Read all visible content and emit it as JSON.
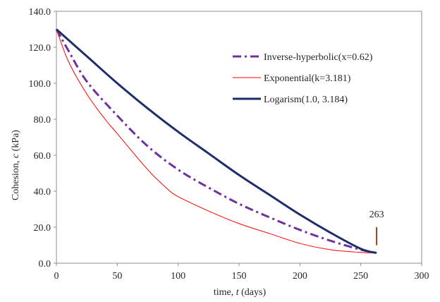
{
  "chart_data": {
    "type": "line",
    "xlabel": {
      "prefix": "time, ",
      "var": "t",
      "suffix": " (days)"
    },
    "ylabel": {
      "prefix": "Cohesion, ",
      "var": "c",
      "suffix": " (kPa)"
    },
    "xlim": [
      0,
      300
    ],
    "ylim": [
      0,
      140
    ],
    "xticks": [
      0,
      50,
      100,
      150,
      200,
      250,
      300
    ],
    "yticks": [
      0,
      20,
      40,
      60,
      80,
      100,
      120,
      140
    ],
    "xtick_labels": [
      "0",
      "50",
      "100",
      "150",
      "200",
      "250",
      "300"
    ],
    "ytick_labels": [
      "0.0",
      "20.0",
      "40.0",
      "60.0",
      "80.0",
      "100.0",
      "120.0",
      "140.0"
    ],
    "grid": false,
    "legend_position": "top-right",
    "series": [
      {
        "name": "Inverse-hyperbolic(x=0.62)",
        "color": "#7030a0",
        "style": "dash-dot",
        "x": [
          0,
          10,
          25,
          50,
          75,
          100,
          125,
          150,
          175,
          200,
          225,
          250,
          263
        ],
        "y": [
          130,
          118,
          101,
          82,
          65,
          52,
          42,
          33,
          25.5,
          18.5,
          12.5,
          7.5,
          5.7
        ]
      },
      {
        "name": "Exponential(k=3.181)",
        "color": "#ff0000",
        "style": "solid-thin",
        "x": [
          0,
          10,
          25,
          40,
          50,
          75,
          90,
          100,
          125,
          150,
          175,
          200,
          225,
          250,
          263
        ],
        "y": [
          130,
          112,
          94,
          80,
          72,
          52,
          42,
          37,
          29,
          22,
          16.5,
          11,
          7.5,
          6.0,
          5.7
        ]
      },
      {
        "name": "Logarism(1.0, 3.184)",
        "color": "#1f2d6b",
        "style": "solid-thick",
        "x": [
          0,
          25,
          50,
          75,
          100,
          125,
          150,
          175,
          200,
          225,
          250,
          263
        ],
        "y": [
          130,
          115,
          100,
          86,
          73,
          61,
          49,
          38,
          27,
          17,
          8,
          5.7
        ]
      }
    ],
    "annotation": {
      "label": "263",
      "x": 263,
      "y_top": 20,
      "y_bottom": 10,
      "color": "#8b4513"
    }
  }
}
